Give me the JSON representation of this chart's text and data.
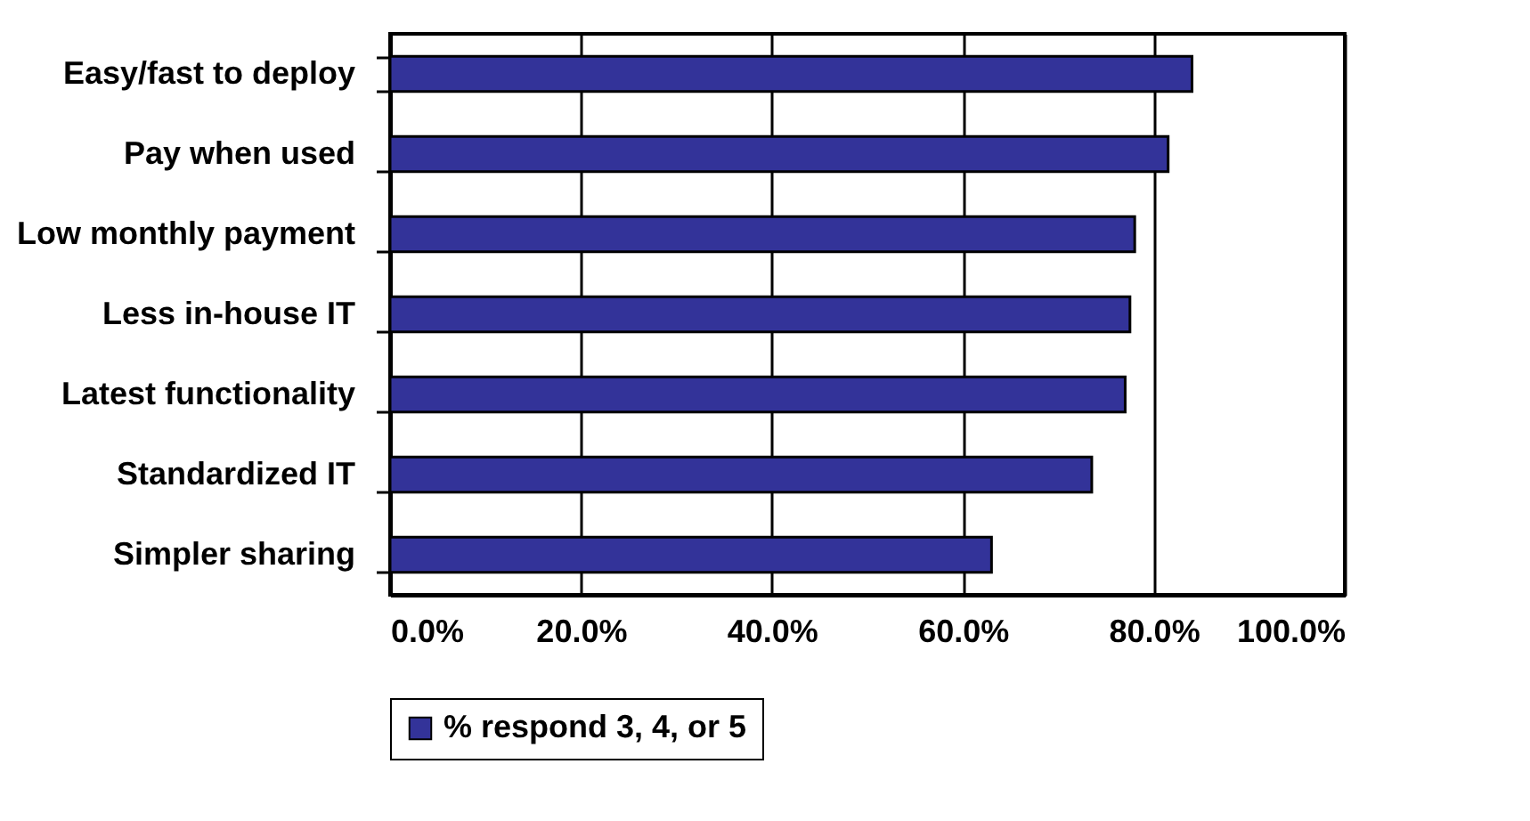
{
  "chart_data": {
    "type": "bar",
    "orientation": "horizontal",
    "categories": [
      "Easy/fast to deploy",
      "Pay when used",
      "Low monthly payment",
      "Less in-house IT",
      "Latest functionality",
      "Standardized IT",
      "Simpler sharing"
    ],
    "series": [
      {
        "name": "% respond 3, 4, or 5",
        "color": "#333399",
        "values": [
          84,
          81.5,
          78,
          77.5,
          77,
          73.5,
          63
        ]
      }
    ],
    "xlim": [
      0,
      100
    ],
    "xticks": [
      {
        "value": 0,
        "label": "0.0%"
      },
      {
        "value": 20,
        "label": "20.0%"
      },
      {
        "value": 40,
        "label": "40.0%"
      },
      {
        "value": 60,
        "label": "60.0%"
      },
      {
        "value": 80,
        "label": "80.0%"
      },
      {
        "value": 100,
        "label": "100.0%"
      }
    ],
    "grid": "x",
    "legend": "bottom"
  }
}
